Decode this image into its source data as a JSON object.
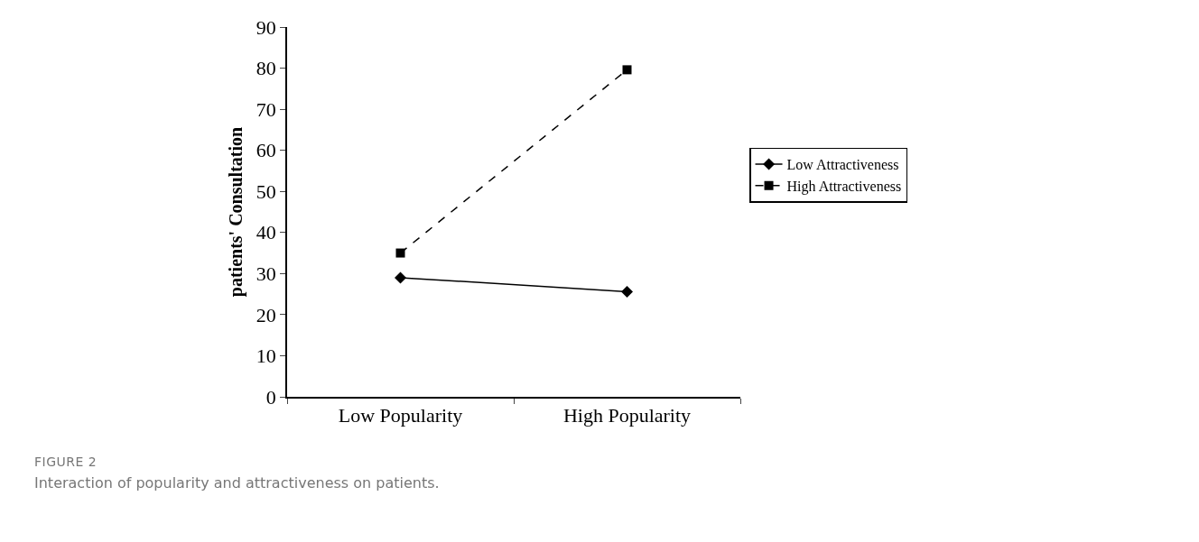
{
  "chart_data": {
    "type": "line",
    "ylabel": "patients' Consultation",
    "categories": [
      "Low Popularity",
      "High Popularity"
    ],
    "series": [
      {
        "name": "Low Attractiveness",
        "color": "#000000",
        "values": [
          29,
          25.6
        ],
        "marker": "diamond",
        "line_style": "solid"
      },
      {
        "name": "High Attractiveness",
        "color": "#000000",
        "values": [
          35,
          79.6
        ],
        "marker": "square",
        "line_style": "dashed"
      }
    ],
    "ylim": [
      0,
      90
    ],
    "yticks": [
      0,
      10,
      20,
      30,
      40,
      50,
      60,
      70,
      80,
      90
    ],
    "grid": false,
    "legend": "right",
    "annotations": [
      "FIGURE 2",
      "Interaction of popularity and attractiveness on patients."
    ]
  }
}
